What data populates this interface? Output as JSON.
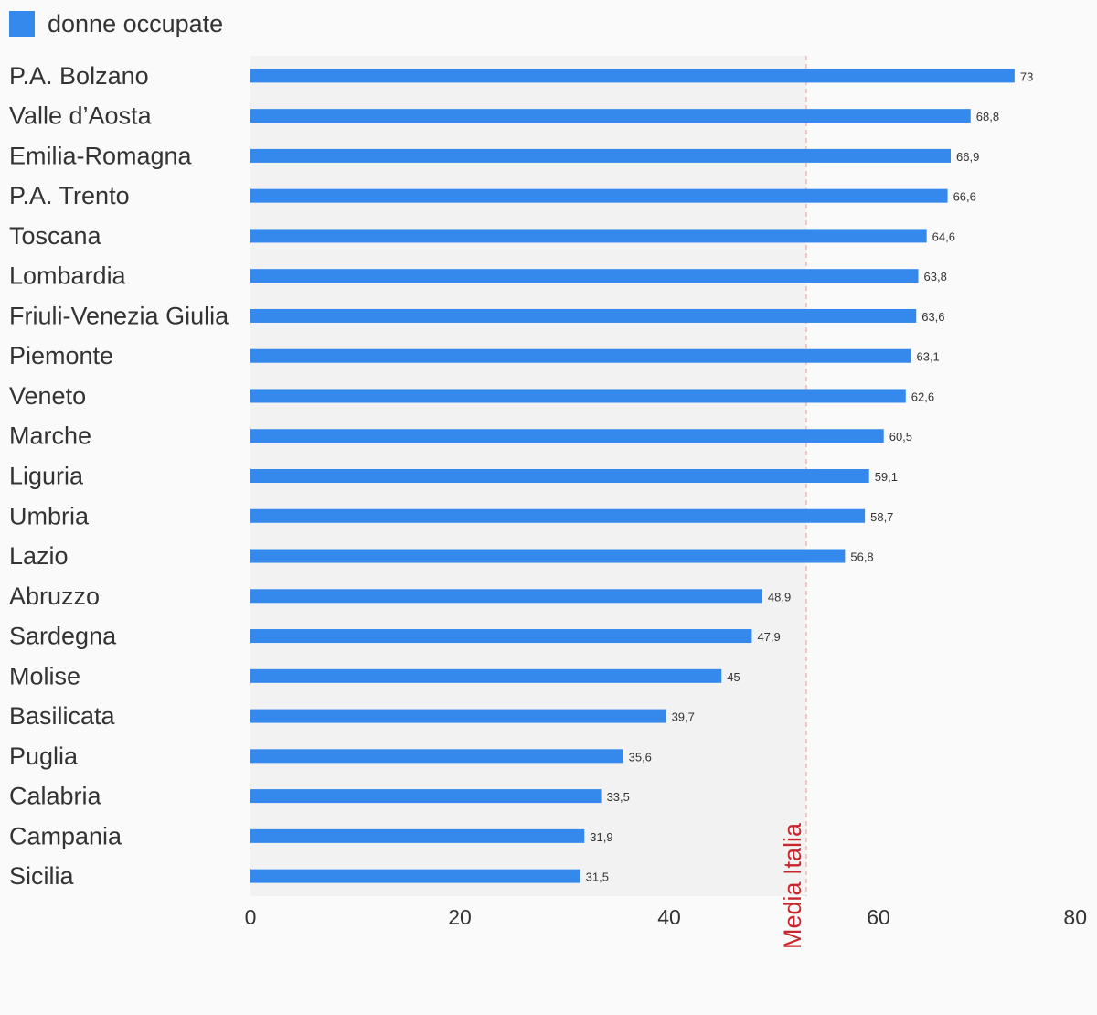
{
  "colors": {
    "bar": "#3589ec",
    "plot_background": "#f2f2f2",
    "reference_line": "#f4b6b6",
    "reference_label": "#c8252c"
  },
  "chart_data": {
    "type": "bar",
    "orientation": "horizontal",
    "categories": [
      "P.A. Bolzano",
      "Valle d’Aosta",
      "Emilia-Romagna",
      "P.A. Trento",
      "Toscana",
      "Lombardia",
      "Friuli-Venezia Giulia",
      "Piemonte",
      "Veneto",
      "Marche",
      "Liguria",
      "Umbria",
      "Lazio",
      "Abruzzo",
      "Sardegna",
      "Molise",
      "Basilicata",
      "Puglia",
      "Calabria",
      "Campania",
      "Sicilia"
    ],
    "series": [
      {
        "name": "donne occupate",
        "values": [
          73,
          68.8,
          66.9,
          66.6,
          64.6,
          63.8,
          63.6,
          63.1,
          62.6,
          60.5,
          59.1,
          58.7,
          56.8,
          48.9,
          47.9,
          45,
          39.7,
          35.6,
          33.5,
          31.9,
          31.5
        ],
        "data_labels": [
          "73",
          "68,8",
          "66,9",
          "66,6",
          "64,6",
          "63,8",
          "63,6",
          "63,1",
          "62,6",
          "60,5",
          "59,1",
          "58,7",
          "56,8",
          "48,9",
          "47,9",
          "45",
          "39,7",
          "35,6",
          "33,5",
          "31,9",
          "31,5"
        ]
      }
    ],
    "xlim": [
      0,
      80
    ],
    "x_ticks": [
      0,
      20,
      40,
      60,
      80
    ],
    "x_tick_labels": [
      "0",
      "20",
      "40",
      "60",
      "80"
    ],
    "reference_line": {
      "value": 53.1,
      "label": "Media Italia"
    },
    "grid": false,
    "legend_position": "top-left"
  }
}
